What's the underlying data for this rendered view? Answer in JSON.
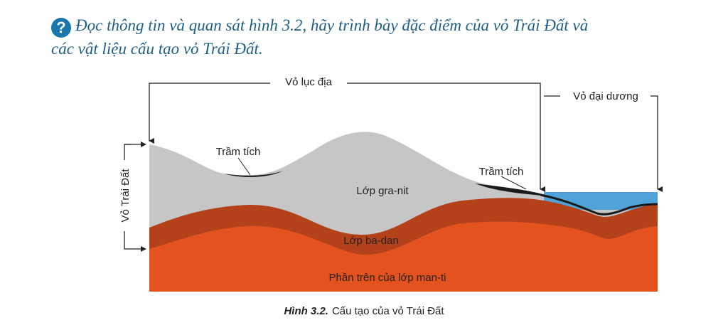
{
  "question": {
    "icon": "?",
    "lines": [
      "Đọc thông tin và quan sát hình 3.2, hãy trình bày đặc điểm của vỏ Trái Đất và",
      "các vật liệu cấu tạo vỏ Trái Đất."
    ]
  },
  "diagram": {
    "labels": {
      "continental_crust": "Vỏ lục địa",
      "oceanic_crust": "Vỏ đại dương",
      "earth_crust": "Vỏ Trái Đất",
      "sediment_left": "Trầm tích",
      "sediment_right": "Trầm tích",
      "granite": "Lớp gra-nit",
      "basalt": "Lớp ba-dan",
      "mantle": "Phần trên của lớp man-ti"
    },
    "caption": {
      "number": "Hình 3.2.",
      "text": "Cấu tạo của vỏ Trái Đất"
    }
  }
}
